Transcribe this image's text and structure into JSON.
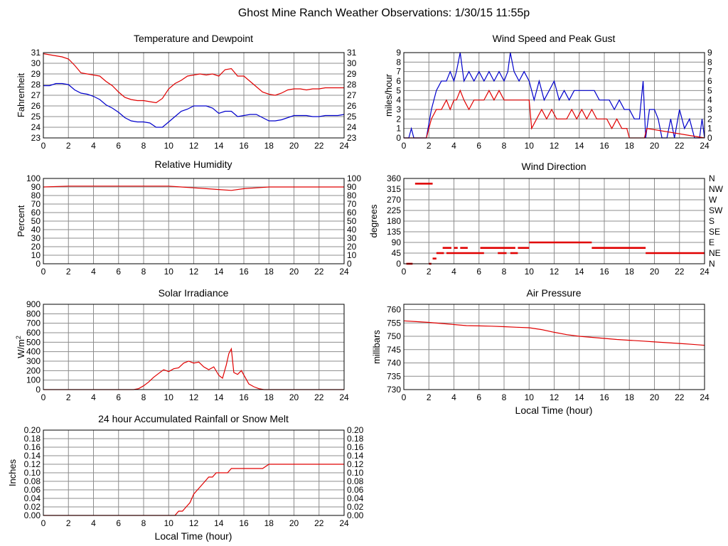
{
  "page": {
    "title": "Ghost Mine Ranch Weather Observations: 1/30/15 11:55p"
  },
  "colors": {
    "grid": "#8c8c8c",
    "red": "#e00000",
    "blue": "#0000cc",
    "axis": "#000000"
  },
  "chart_data": [
    {
      "id": "temperature",
      "type": "line",
      "title": "Temperature and Dewpoint",
      "ylabel": "Fahrenheit",
      "xlabel": "",
      "xlim": [
        0,
        24
      ],
      "ylim": [
        23,
        31
      ],
      "yticks": [
        23,
        24,
        25,
        26,
        27,
        28,
        29,
        30,
        31
      ],
      "ytick_labels": [
        "23",
        "24",
        "25",
        "26",
        "27",
        "28",
        "29",
        "30",
        "31"
      ],
      "right_ticks": true,
      "series": [
        {
          "name": "Temperature",
          "color": "red",
          "x": [
            0,
            0.5,
            1,
            1.5,
            2,
            2.5,
            3,
            3.5,
            4,
            4.5,
            5,
            5.5,
            6,
            6.5,
            7,
            7.5,
            8,
            8.5,
            9,
            9.5,
            10,
            10.5,
            11,
            11.5,
            12,
            12.5,
            13,
            13.5,
            14,
            14.5,
            15,
            15.5,
            16,
            16.5,
            17,
            17.5,
            18,
            18.5,
            19,
            19.5,
            20,
            20.5,
            21,
            21.5,
            22,
            22.5,
            23,
            23.5,
            24
          ],
          "y": [
            30.9,
            30.8,
            30.7,
            30.6,
            30.4,
            29.8,
            29.1,
            29,
            28.9,
            28.8,
            28.3,
            27.9,
            27.3,
            26.8,
            26.6,
            26.5,
            26.5,
            26.4,
            26.3,
            26.7,
            27.6,
            28.1,
            28.4,
            28.8,
            28.9,
            29,
            28.9,
            29,
            28.8,
            29.4,
            29.5,
            28.8,
            28.8,
            28.3,
            27.8,
            27.3,
            27.1,
            27,
            27.2,
            27.5,
            27.6,
            27.6,
            27.5,
            27.6,
            27.6,
            27.7,
            27.7,
            27.7,
            27.7
          ]
        },
        {
          "name": "Dewpoint",
          "color": "blue",
          "x": [
            0,
            0.5,
            1,
            1.5,
            2,
            2.5,
            3,
            3.5,
            4,
            4.5,
            5,
            5.5,
            6,
            6.5,
            7,
            7.5,
            8,
            8.5,
            9,
            9.5,
            10,
            10.5,
            11,
            11.5,
            12,
            12.5,
            13,
            13.5,
            14,
            14.5,
            15,
            15.5,
            16,
            16.5,
            17,
            17.5,
            18,
            18.5,
            19,
            19.5,
            20,
            20.5,
            21,
            21.5,
            22,
            22.5,
            23,
            23.5,
            24
          ],
          "y": [
            27.9,
            27.9,
            28.1,
            28.1,
            28,
            27.5,
            27.2,
            27.1,
            26.9,
            26.6,
            26.1,
            25.8,
            25.4,
            24.9,
            24.6,
            24.5,
            24.5,
            24.4,
            24,
            24,
            24.5,
            25,
            25.5,
            25.7,
            26,
            26,
            26,
            25.8,
            25.3,
            25.5,
            25.5,
            25,
            25.1,
            25.2,
            25.2,
            24.9,
            24.6,
            24.6,
            24.7,
            24.9,
            25.1,
            25.1,
            25.1,
            25,
            25,
            25.1,
            25.1,
            25.1,
            25.2
          ]
        }
      ]
    },
    {
      "id": "wind-speed",
      "type": "line",
      "title": "Wind Speed and Peak Gust",
      "ylabel": "miles/hour",
      "xlabel": "",
      "xlim": [
        0,
        24
      ],
      "ylim": [
        0,
        9
      ],
      "yticks": [
        0,
        1,
        2,
        3,
        4,
        5,
        6,
        7,
        8,
        9
      ],
      "ytick_labels": [
        "0",
        "1",
        "2",
        "3",
        "4",
        "5",
        "6",
        "7",
        "8",
        "9"
      ],
      "right_ticks": true,
      "series": [
        {
          "name": "Peak Gust",
          "color": "blue",
          "x": [
            0,
            0.4,
            0.6,
            0.8,
            1.8,
            2.2,
            2.6,
            3,
            3.4,
            3.7,
            4,
            4.2,
            4.5,
            4.8,
            5.2,
            5.6,
            6,
            6.4,
            6.8,
            7.2,
            7.6,
            8,
            8.3,
            8.5,
            8.8,
            9.2,
            9.6,
            10,
            10.4,
            10.8,
            11.2,
            11.6,
            12,
            12.4,
            12.8,
            13.2,
            13.6,
            14,
            14.4,
            14.8,
            15.2,
            15.6,
            16,
            16.4,
            16.8,
            17.2,
            17.6,
            18,
            18.4,
            18.8,
            19.1,
            19.3,
            19.6,
            20,
            20.3,
            20.6,
            21,
            21.3,
            21.6,
            22,
            22.4,
            22.8,
            23.2,
            23.6,
            23.8,
            24
          ],
          "y": [
            0,
            0,
            1,
            0,
            0,
            3,
            5,
            6,
            6,
            7,
            6,
            7,
            9,
            6,
            7,
            6,
            7,
            6,
            7,
            6,
            7,
            6,
            7,
            9,
            7,
            6,
            7,
            6,
            4,
            6,
            4,
            5,
            6,
            4,
            5,
            4,
            5,
            5,
            5,
            5,
            5,
            4,
            4,
            4,
            3,
            4,
            3,
            3,
            2,
            2,
            6,
            0,
            3,
            3,
            2,
            0,
            0,
            2,
            0,
            3,
            1,
            2,
            0,
            0,
            2,
            0
          ]
        },
        {
          "name": "Wind Speed",
          "color": "red",
          "x": [
            0,
            1.8,
            2.2,
            2.6,
            3,
            3.4,
            3.7,
            4,
            4.2,
            4.5,
            4.8,
            5.2,
            5.6,
            6,
            6.4,
            6.8,
            7.2,
            7.6,
            8,
            8.4,
            8.8,
            9.2,
            9.6,
            10,
            10.2,
            10.6,
            11,
            11.4,
            11.8,
            12.2,
            12.6,
            13,
            13.4,
            13.8,
            14.2,
            14.6,
            15,
            15.4,
            15.8,
            16.2,
            16.6,
            17,
            17.4,
            17.8,
            18,
            19.2,
            19.4,
            24
          ],
          "y": [
            0,
            0,
            2,
            3,
            3,
            4,
            3,
            4,
            4,
            5,
            4,
            3,
            4,
            4,
            4,
            5,
            4,
            5,
            4,
            4,
            4,
            4,
            4,
            4,
            1,
            2,
            3,
            2,
            3,
            2,
            2,
            2,
            3,
            2,
            3,
            2,
            3,
            2,
            2,
            2,
            1,
            2,
            1,
            1,
            0,
            0,
            1,
            0
          ]
        }
      ]
    },
    {
      "id": "humidity",
      "type": "line",
      "title": "Relative Humidity",
      "ylabel": "Percent",
      "xlabel": "",
      "xlim": [
        0,
        24
      ],
      "ylim": [
        0,
        100
      ],
      "yticks": [
        0,
        10,
        20,
        30,
        40,
        50,
        60,
        70,
        80,
        90,
        100
      ],
      "ytick_labels": [
        "0",
        "10",
        "20",
        "30",
        "40",
        "50",
        "60",
        "70",
        "80",
        "90",
        "100"
      ],
      "right_ticks": true,
      "series": [
        {
          "name": "Relative Humidity",
          "color": "red",
          "x": [
            0,
            2,
            4,
            6,
            8,
            10,
            11,
            12,
            13,
            14,
            15,
            16,
            17,
            18,
            20,
            22,
            24
          ],
          "y": [
            90,
            91,
            91,
            91,
            91,
            91,
            90,
            89,
            88,
            87,
            86,
            88,
            89,
            90,
            90,
            90,
            90
          ]
        }
      ]
    },
    {
      "id": "wind-direction",
      "type": "scatter",
      "title": "Wind Direction",
      "ylabel": "degrees",
      "xlabel": "",
      "xlim": [
        0,
        24
      ],
      "ylim": [
        0,
        360
      ],
      "yticks": [
        0,
        45,
        90,
        135,
        180,
        225,
        270,
        315,
        360
      ],
      "ytick_labels": [
        "0",
        "45",
        "90",
        "135",
        "180",
        "225",
        "270",
        "315",
        "360"
      ],
      "right_labels": [
        "N",
        "NE",
        "E",
        "SE",
        "S",
        "SW",
        "W",
        "NW",
        "N"
      ],
      "segments": [
        {
          "x0": 0.2,
          "x1": 0.7,
          "y": 0
        },
        {
          "x0": 0.9,
          "x1": 2.3,
          "y": 338
        },
        {
          "x0": 2.0,
          "x1": 2.2,
          "y": 0
        },
        {
          "x0": 2.3,
          "x1": 2.6,
          "y": 22
        },
        {
          "x0": 2.6,
          "x1": 3.2,
          "y": 45
        },
        {
          "x0": 3.1,
          "x1": 3.8,
          "y": 67
        },
        {
          "x0": 3.4,
          "x1": 6.4,
          "y": 45
        },
        {
          "x0": 4.0,
          "x1": 4.3,
          "y": 67
        },
        {
          "x0": 4.5,
          "x1": 5.1,
          "y": 67
        },
        {
          "x0": 6.1,
          "x1": 8.9,
          "y": 67
        },
        {
          "x0": 7.5,
          "x1": 8.2,
          "y": 45
        },
        {
          "x0": 8.5,
          "x1": 9.1,
          "y": 45
        },
        {
          "x0": 9.1,
          "x1": 10.0,
          "y": 67
        },
        {
          "x0": 10.0,
          "x1": 15.0,
          "y": 90
        },
        {
          "x0": 15.0,
          "x1": 19.3,
          "y": 67
        },
        {
          "x0": 19.3,
          "x1": 24.0,
          "y": 45
        }
      ]
    },
    {
      "id": "solar",
      "type": "line",
      "title": "Solar Irradiance",
      "ylabel": "W/m2",
      "xlabel": "",
      "xlim": [
        0,
        24
      ],
      "ylim": [
        0,
        900
      ],
      "yticks": [
        0,
        100,
        200,
        300,
        400,
        500,
        600,
        700,
        800,
        900
      ],
      "ytick_labels": [
        "0",
        "100",
        "200",
        "300",
        "400",
        "500",
        "600",
        "700",
        "800",
        "900"
      ],
      "right_ticks": false,
      "series": [
        {
          "name": "Solar Irradiance",
          "color": "red",
          "x": [
            0,
            7.2,
            7.6,
            8,
            8.4,
            8.8,
            9.2,
            9.6,
            9.8,
            10,
            10.4,
            10.8,
            11.2,
            11.6,
            12,
            12.4,
            12.8,
            13.2,
            13.6,
            14,
            14.3,
            14.6,
            14.8,
            15,
            15.2,
            15.5,
            15.8,
            16.1,
            16.4,
            16.8,
            17.2,
            17.6,
            24
          ],
          "y": [
            0,
            0,
            10,
            40,
            80,
            130,
            170,
            210,
            200,
            190,
            220,
            230,
            280,
            300,
            280,
            290,
            240,
            210,
            240,
            150,
            120,
            260,
            380,
            430,
            180,
            160,
            200,
            130,
            60,
            30,
            10,
            0,
            0
          ]
        }
      ]
    },
    {
      "id": "pressure",
      "type": "line",
      "title": "Air Pressure",
      "ylabel": "millibars",
      "xlabel": "Local Time (hour)",
      "xlim": [
        0,
        24
      ],
      "ylim": [
        730,
        762
      ],
      "yticks": [
        730,
        735,
        740,
        745,
        750,
        755,
        760
      ],
      "ytick_labels": [
        "730",
        "735",
        "740",
        "745",
        "750",
        "755",
        "760"
      ],
      "right_ticks": false,
      "series": [
        {
          "name": "Air Pressure",
          "color": "red",
          "x": [
            0,
            1,
            2,
            3,
            4,
            5,
            6,
            7,
            8,
            9,
            10,
            11,
            12,
            13,
            14,
            15,
            16,
            17,
            18,
            19,
            20,
            21,
            22,
            23,
            24
          ],
          "y": [
            755.8,
            755.5,
            755.2,
            754.8,
            754.4,
            754,
            753.9,
            753.8,
            753.6,
            753.4,
            753.2,
            752.5,
            751.5,
            750.6,
            750,
            749.6,
            749.2,
            748.8,
            748.5,
            748.2,
            747.9,
            747.6,
            747.3,
            747,
            746.6
          ]
        }
      ]
    },
    {
      "id": "rainfall",
      "type": "line",
      "title": "24 hour Accumulated Rainfall or Snow Melt",
      "ylabel": "Inches",
      "xlabel": "Local Time (hour)",
      "xlim": [
        0,
        24
      ],
      "ylim": [
        0,
        0.2
      ],
      "yticks": [
        0,
        0.02,
        0.04,
        0.06,
        0.08,
        0.1,
        0.12,
        0.14,
        0.16,
        0.18,
        0.2
      ],
      "ytick_labels": [
        "0.00",
        "0.02",
        "0.04",
        "0.06",
        "0.08",
        "0.10",
        "0.12",
        "0.14",
        "0.16",
        "0.18",
        "0.20"
      ],
      "right_ticks": true,
      "series": [
        {
          "name": "Accumulated Rainfall",
          "color": "red",
          "x": [
            0,
            10.5,
            10.8,
            11.1,
            11.4,
            11.7,
            12,
            12.3,
            12.6,
            12.9,
            13.2,
            13.5,
            13.8,
            14.1,
            14.4,
            14.7,
            15,
            15.3,
            15.6,
            16,
            16.5,
            17,
            17.5,
            18,
            24
          ],
          "y": [
            0,
            0,
            0.01,
            0.01,
            0.02,
            0.03,
            0.05,
            0.06,
            0.07,
            0.08,
            0.09,
            0.09,
            0.1,
            0.1,
            0.1,
            0.1,
            0.11,
            0.11,
            0.11,
            0.11,
            0.11,
            0.11,
            0.11,
            0.12,
            0.12
          ]
        }
      ]
    }
  ]
}
